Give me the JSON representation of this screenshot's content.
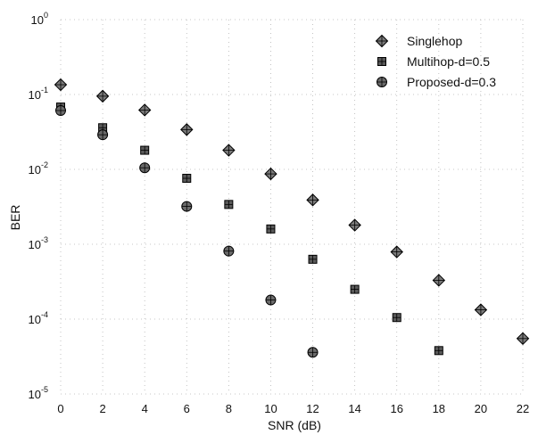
{
  "chart_data": {
    "type": "scatter",
    "title": "",
    "xlabel": "SNR (dB)",
    "ylabel": "BER",
    "xlim": [
      0,
      22
    ],
    "ylim": [
      1e-05,
      1
    ],
    "yscale": "log",
    "x_ticks": [
      "0",
      "2",
      "4",
      "6",
      "8",
      "10",
      "12",
      "14",
      "16",
      "18",
      "20",
      "22"
    ],
    "y_ticks": [
      {
        "base": "10",
        "exp": "0"
      },
      {
        "base": "10",
        "exp": "-1"
      },
      {
        "base": "10",
        "exp": "-2"
      },
      {
        "base": "10",
        "exp": "-3"
      },
      {
        "base": "10",
        "exp": "-4"
      },
      {
        "base": "10",
        "exp": "-5"
      }
    ],
    "grid": true,
    "legend_position": "top-right",
    "series": [
      {
        "name": "Singlehop",
        "marker": "diamond",
        "color": "#7a7a7a",
        "x": [
          0,
          2,
          4,
          6,
          8,
          10,
          12,
          14,
          16,
          18,
          20,
          22
        ],
        "y": [
          0.135,
          0.095,
          0.062,
          0.034,
          0.018,
          0.0087,
          0.0039,
          0.0018,
          0.00079,
          0.00033,
          0.000133,
          5.5e-05
        ]
      },
      {
        "name": "Multihop-d=0.5",
        "marker": "square",
        "color": "#5a5a5a",
        "x": [
          0,
          2,
          4,
          6,
          8,
          10,
          12,
          14,
          16,
          18
        ],
        "y": [
          0.068,
          0.036,
          0.018,
          0.0076,
          0.0034,
          0.0016,
          0.00063,
          0.00025,
          0.000105,
          3.8e-05
        ]
      },
      {
        "name": "Proposed-d=0.3",
        "marker": "circle",
        "color": "#6a6a6a",
        "x": [
          0,
          2,
          4,
          6,
          8,
          10,
          12
        ],
        "y": [
          0.061,
          0.029,
          0.0105,
          0.0032,
          0.00081,
          0.00018,
          3.6e-05
        ]
      }
    ]
  }
}
